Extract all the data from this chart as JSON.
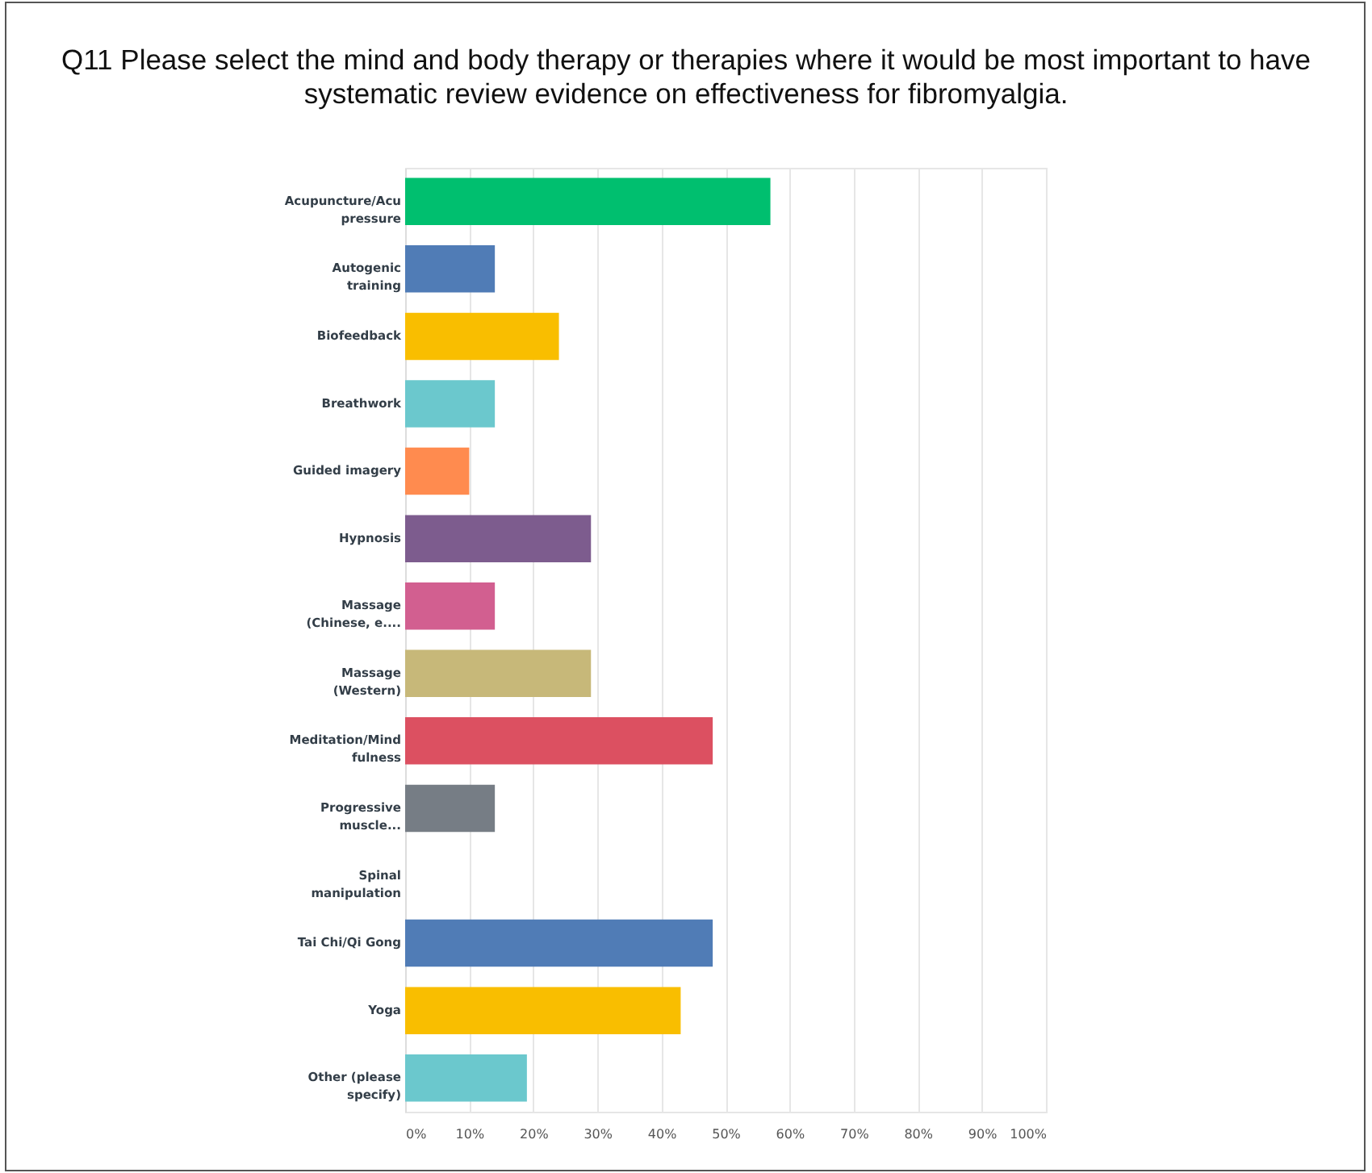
{
  "chart_data": {
    "type": "bar",
    "orientation": "horizontal",
    "title": "Q11 Please select the mind and body therapy or therapies where it would be most important to have systematic review evidence on effectiveness for fibromyalgia.",
    "categories": [
      "Acupuncture/Acupressure",
      "Autogenic training",
      "Biofeedback",
      "Breathwork",
      "Guided imagery",
      "Hypnosis",
      "Massage (Chinese, e....",
      "Massage (Western)",
      "Meditation/Mindfulness",
      "Progressive muscle...",
      "Spinal manipulation",
      "Tai Chi/Qi Gong",
      "Yoga",
      "Other (please specify)"
    ],
    "values": [
      57,
      14,
      24,
      14,
      10,
      29,
      14,
      29,
      48,
      14,
      0,
      48,
      43,
      19
    ],
    "colors": [
      "#00bf6f",
      "#507cb6",
      "#f9be00",
      "#6bc8cd",
      "#ff8b4f",
      "#7d5c8e",
      "#d25f90",
      "#c7b879",
      "#dc5061",
      "#767d85",
      "#e9b3b4",
      "#507cb6",
      "#f9be00",
      "#6bc8cd"
    ],
    "xlim": [
      0,
      100
    ],
    "xticks": [
      {
        "value": 0,
        "label": "0%"
      },
      {
        "value": 10,
        "label": "10%"
      },
      {
        "value": 20,
        "label": "20%"
      },
      {
        "value": 30,
        "label": "30%"
      },
      {
        "value": 40,
        "label": "40%"
      },
      {
        "value": 50,
        "label": "50%"
      },
      {
        "value": 60,
        "label": "60%"
      },
      {
        "value": 70,
        "label": "70%"
      },
      {
        "value": 80,
        "label": "80%"
      },
      {
        "value": 90,
        "label": "90%"
      },
      {
        "value": 100,
        "label": "100%"
      }
    ],
    "grid": "x",
    "legend": false
  }
}
